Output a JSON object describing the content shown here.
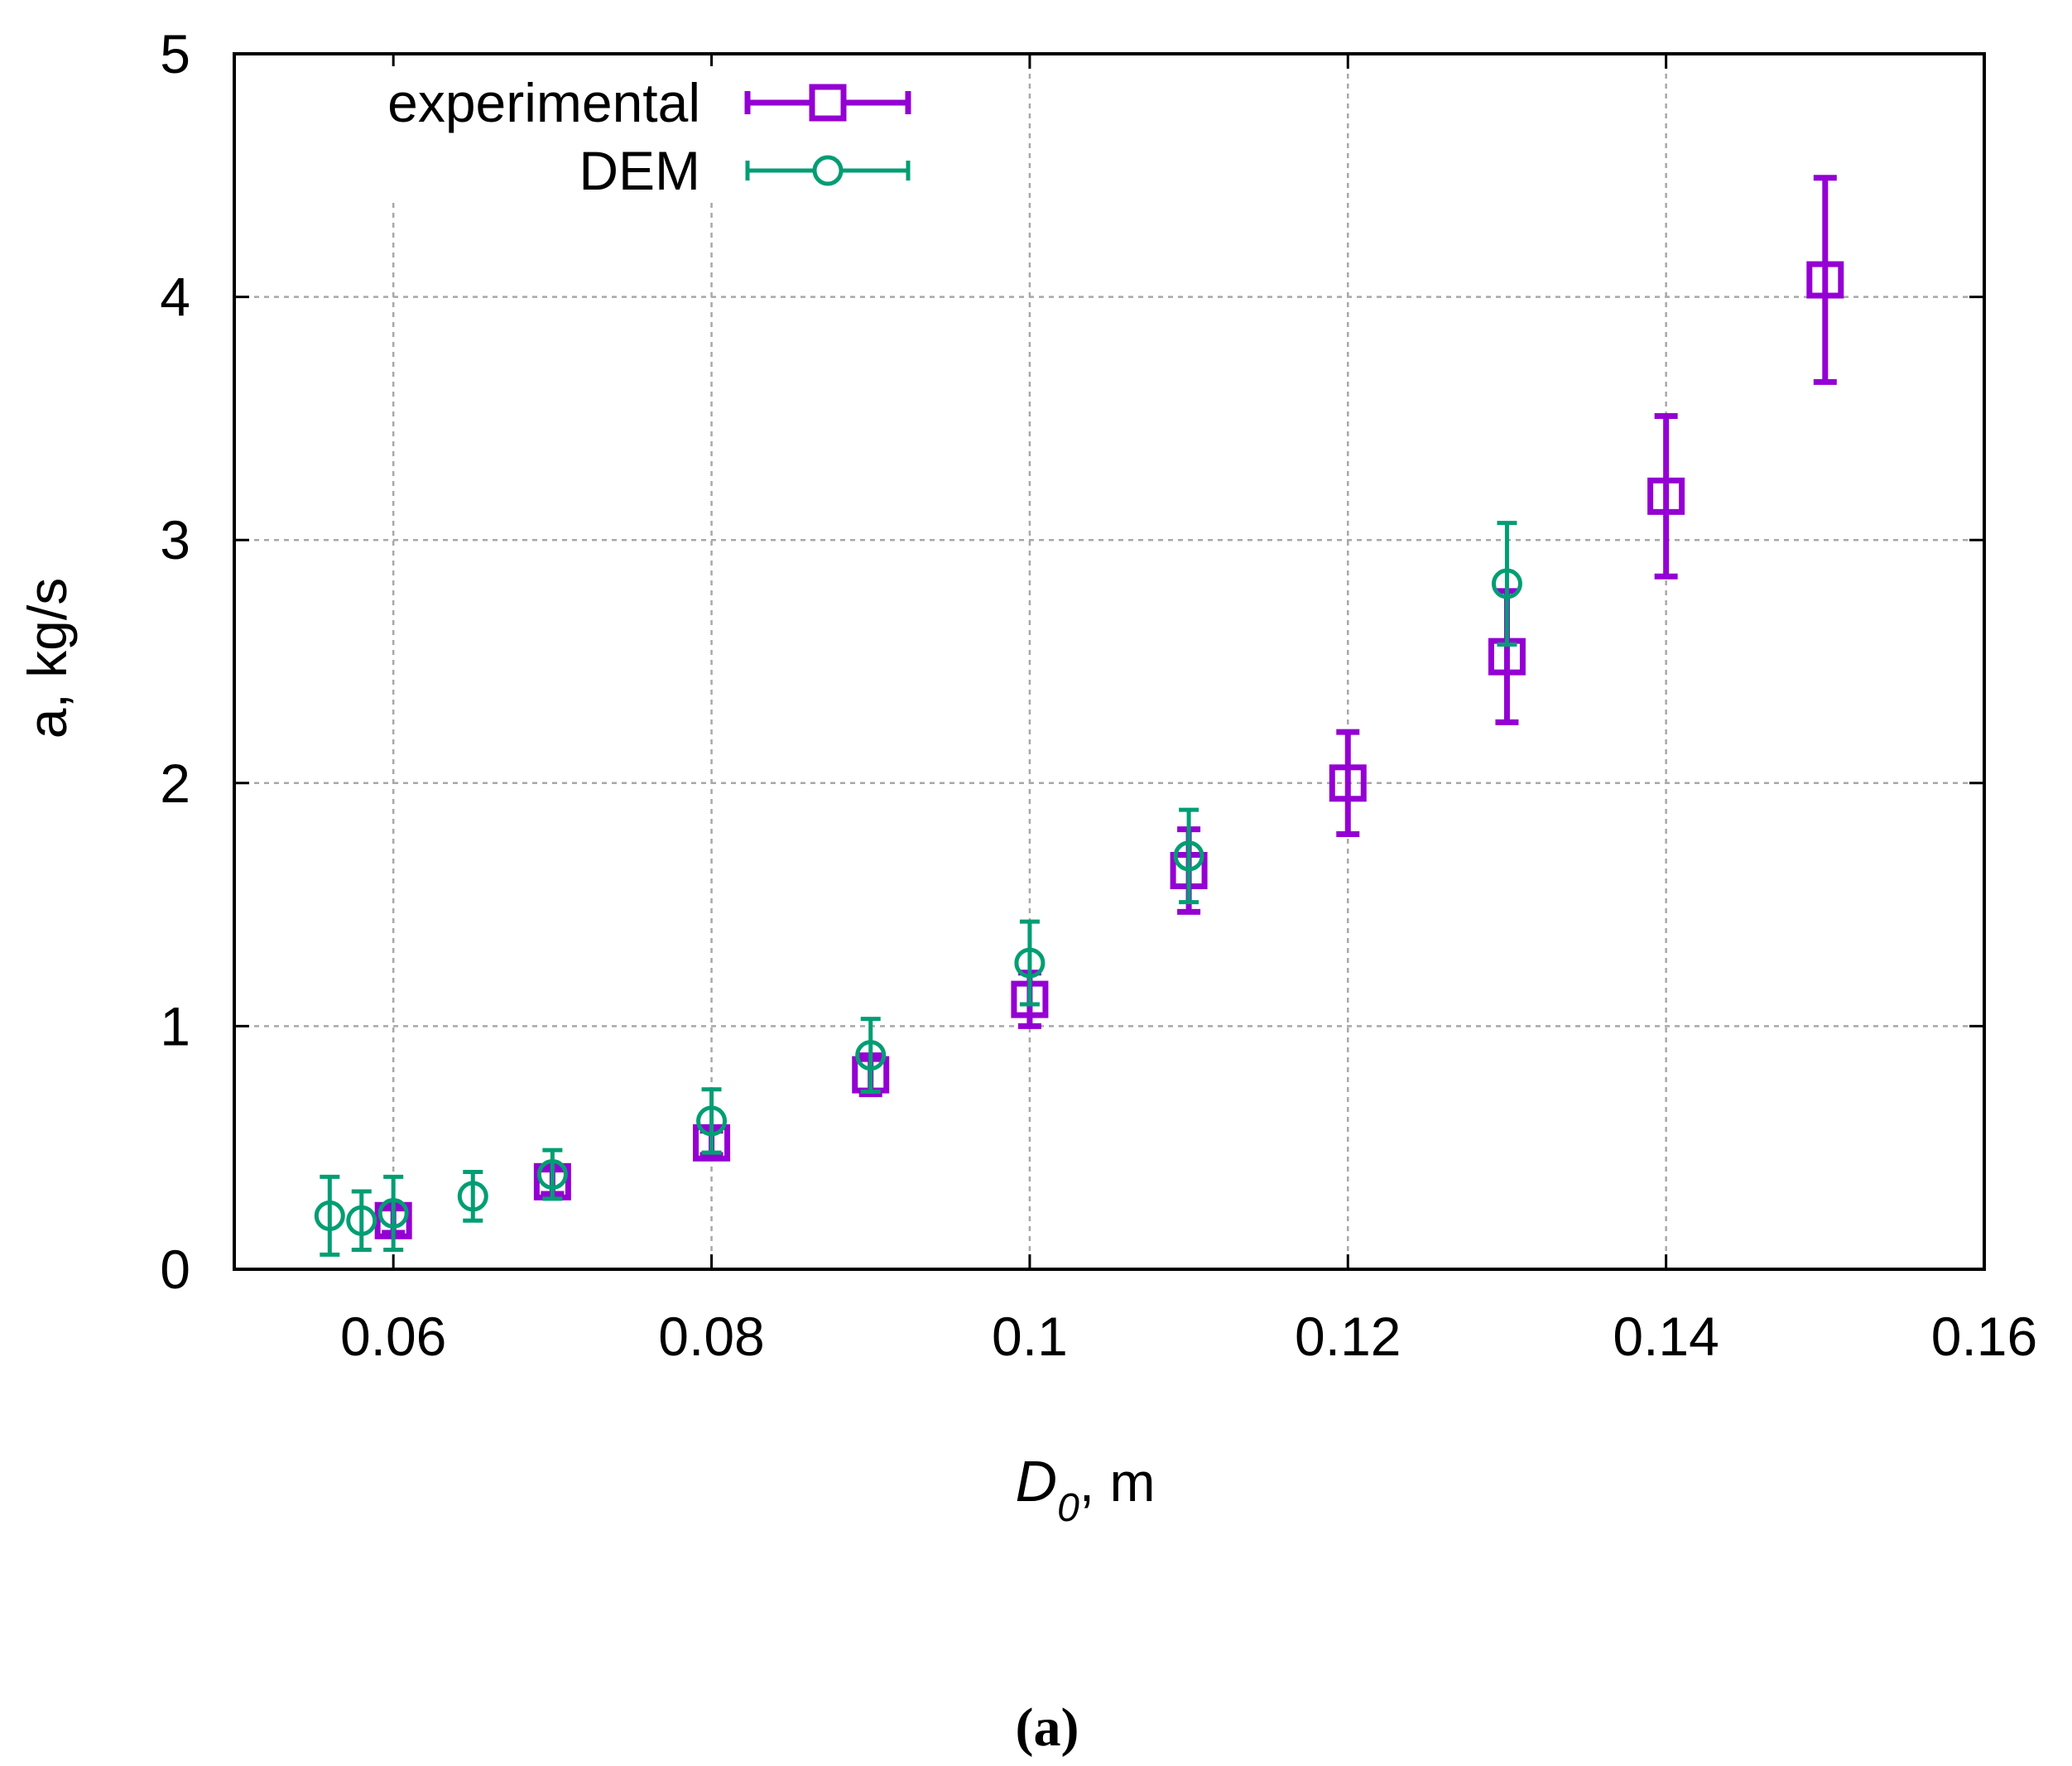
{
  "chart_data": {
    "type": "scatter",
    "title": "",
    "xlabel": "D₀, m",
    "xlabel_main": "D",
    "xlabel_sub": "0",
    "xlabel_suffix": ", m",
    "ylabel": "a, kg/s",
    "xlim": [
      0.05,
      0.16
    ],
    "ylim": [
      0,
      5
    ],
    "xticks": [
      0.06,
      0.08,
      0.1,
      0.12,
      0.14,
      0.16
    ],
    "xtick_labels": [
      "0.06",
      "0.08",
      "0.1",
      "0.12",
      "0.14",
      "0.16"
    ],
    "yticks": [
      0,
      1,
      2,
      3,
      4,
      5
    ],
    "ytick_labels": [
      "0",
      "1",
      "2",
      "3",
      "4",
      "5"
    ],
    "grid": true,
    "legend_position": "top-left",
    "series": [
      {
        "name": "experimental",
        "color": "#9400d3",
        "marker": "square",
        "x": [
          0.06,
          0.07,
          0.08,
          0.09,
          0.1,
          0.11,
          0.12,
          0.13,
          0.14,
          0.15
        ],
        "y": [
          0.2,
          0.36,
          0.52,
          0.8,
          1.11,
          1.64,
          2.0,
          2.52,
          3.18,
          4.07
        ],
        "yerr": [
          0.05,
          0.05,
          0.05,
          0.08,
          0.11,
          0.17,
          0.21,
          0.27,
          0.33,
          0.42
        ]
      },
      {
        "name": "DEM",
        "color": "#009e73",
        "marker": "circle",
        "x": [
          0.056,
          0.058,
          0.06,
          0.065,
          0.07,
          0.08,
          0.09,
          0.1,
          0.11,
          0.13
        ],
        "y": [
          0.22,
          0.2,
          0.23,
          0.3,
          0.39,
          0.61,
          0.88,
          1.26,
          1.7,
          2.82
        ],
        "yerr": [
          0.16,
          0.12,
          0.15,
          0.1,
          0.1,
          0.13,
          0.15,
          0.17,
          0.19,
          0.25
        ]
      }
    ],
    "caption": "(a)"
  }
}
